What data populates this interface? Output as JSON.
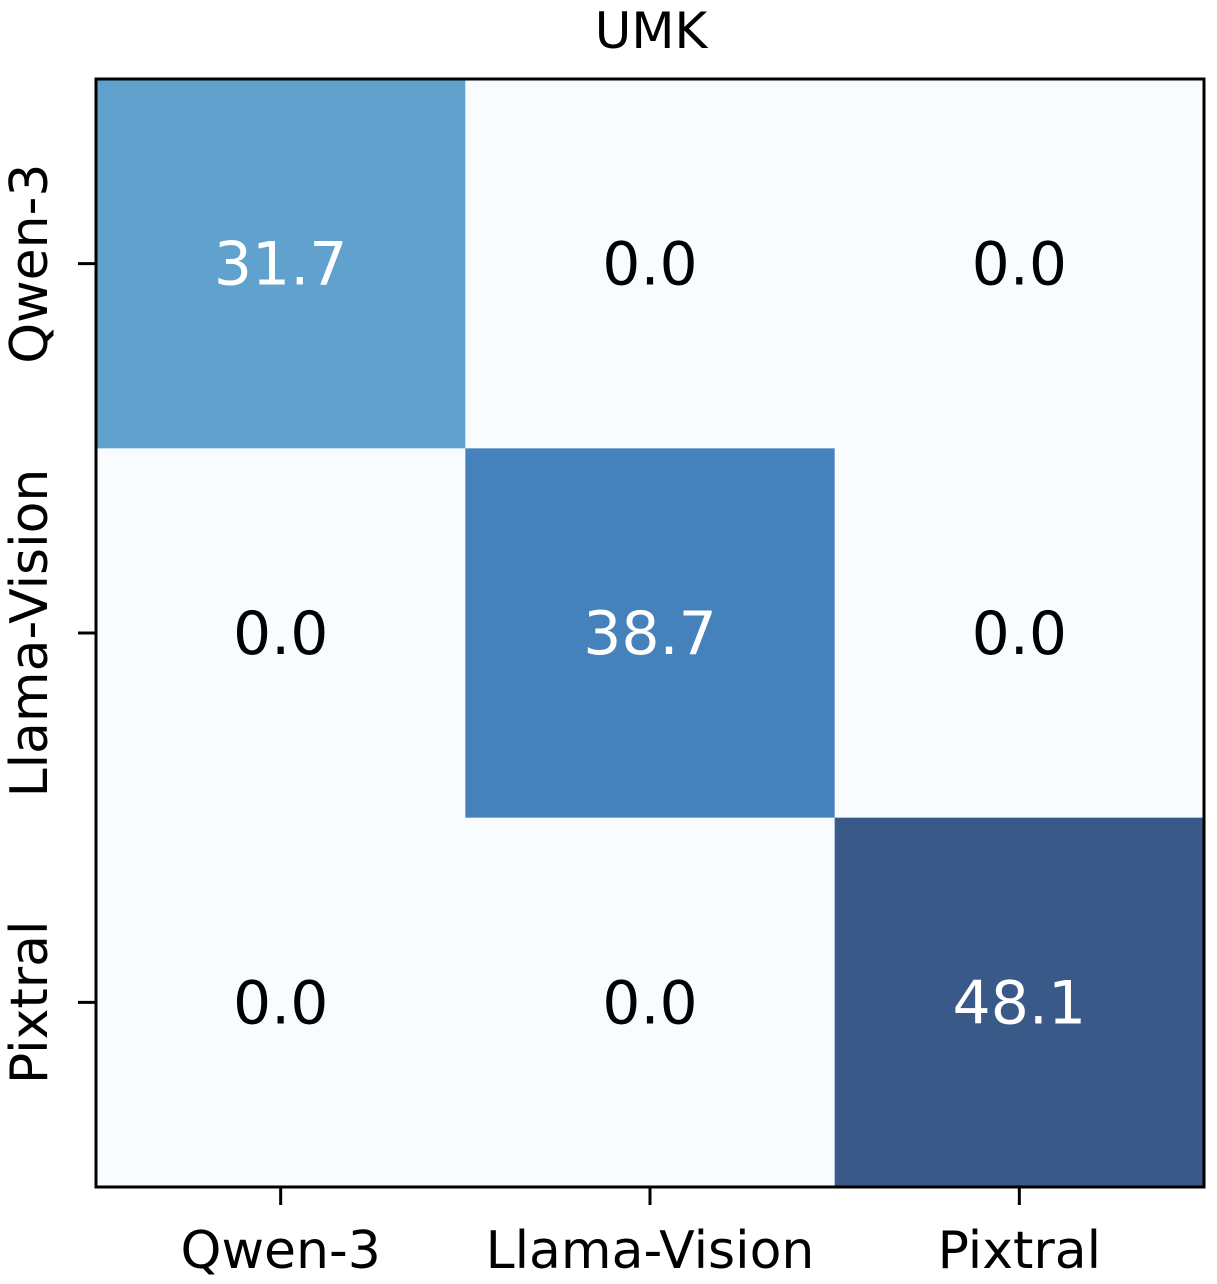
{
  "chart_data": {
    "type": "heatmap",
    "title": "UMK",
    "xlabel": "",
    "ylabel": "",
    "x_categories": [
      "Qwen-3",
      "Llama-Vision",
      "Pixtral"
    ],
    "y_categories": [
      "Qwen-3",
      "Llama-Vision",
      "Pixtral"
    ],
    "values": [
      [
        31.7,
        0.0,
        0.0
      ],
      [
        0.0,
        38.7,
        0.0
      ],
      [
        0.0,
        0.0,
        48.1
      ]
    ],
    "value_labels": [
      [
        "31.7",
        "0.0",
        "0.0"
      ],
      [
        "0.0",
        "38.7",
        "0.0"
      ],
      [
        "0.0",
        "0.0",
        "48.1"
      ]
    ],
    "colormap": "Blues",
    "colors": {
      "low": "#f7fbff",
      "text_dark": "#000000",
      "text_light": "#ffffff",
      "axis": "#000000"
    },
    "grid": false,
    "legend": "none"
  }
}
